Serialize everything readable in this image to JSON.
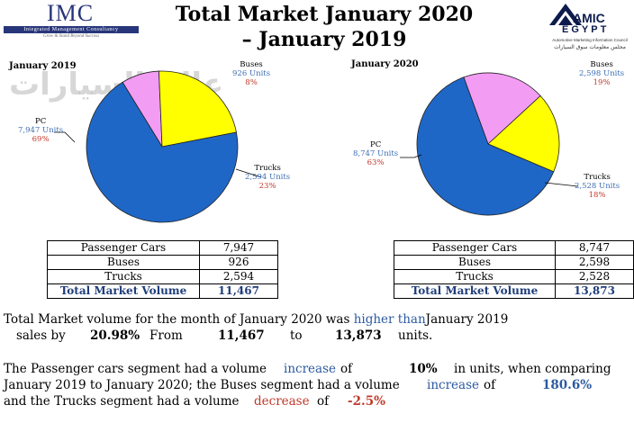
{
  "header": {
    "title_line1": "Total Market January 2020",
    "title_line2": "– January 2019",
    "imc_logo": {
      "letters": "IMC",
      "bar": "Integrated Management Consultancy",
      "tagline": "Grow & Stand Beyond Success"
    },
    "amic_logo": {
      "word1": "AMIC",
      "word2": "EGYPT",
      "sub_en": "Automotive Marketing Information Council",
      "sub_ar": "مجلس معلومات سوق السيارات"
    }
  },
  "watermark": "عالم السيارات",
  "colors": {
    "pc": "#1f67c7",
    "buses": "#f39cf3",
    "trucks": "#ffff00",
    "units": "#3f6fb5",
    "pct": "#c0392b",
    "total": "#1f3d7a"
  },
  "chart_data": [
    {
      "type": "pie",
      "title": "January 2019",
      "categories": [
        "PC",
        "Buses",
        "Trucks"
      ],
      "values": [
        7947,
        926,
        2594
      ],
      "percent_labels": [
        "69%",
        "8%",
        "23%"
      ],
      "unit_labels": [
        "7,947 Units",
        "926 Units",
        "2,594 Units"
      ]
    },
    {
      "type": "pie",
      "title": "January 2020",
      "categories": [
        "PC",
        "Buses",
        "Trucks"
      ],
      "values": [
        8747,
        2598,
        2528
      ],
      "percent_labels": [
        "63%",
        "19%",
        "18%"
      ],
      "unit_labels": [
        "8,747 Units",
        "2,598 Units",
        "2,528 Units"
      ]
    },
    {
      "type": "table",
      "title": "",
      "rows": [
        [
          "Passenger Cars",
          "7,947"
        ],
        [
          "Buses",
          "926"
        ],
        [
          "Trucks",
          "2,594"
        ],
        [
          "Total Market Volume",
          "11,467"
        ]
      ]
    },
    {
      "type": "table",
      "title": "",
      "rows": [
        [
          "Passenger Cars",
          "8,747"
        ],
        [
          "Buses",
          "2,598"
        ],
        [
          "Trucks",
          "2,528"
        ],
        [
          "Total Market Volume",
          "13,873"
        ]
      ]
    }
  ],
  "summary": {
    "line1_a": "Total Market volume for the month of January 2020 was",
    "line1_b": "higher than",
    "line1_c": "January 2019",
    "line2_a": "sales by",
    "line2_pct": "20.98%",
    "line2_b": "From",
    "line2_from": "11,467",
    "line2_c": "to",
    "line2_to": "13,873",
    "line2_d": "units."
  },
  "segments": {
    "l1_a": "The Passenger cars segment had a volume",
    "l1_b": "increase",
    "l1_c": "of",
    "l1_pct": "10%",
    "l1_d": "in units, when comparing",
    "l2_a": "January 2019 to January 2020; the Buses segment had a volume",
    "l2_b": "increase",
    "l2_c": "of",
    "l2_pct": "180.6%",
    "l3_a": "and the Trucks segment had a volume",
    "l3_b": "decrease",
    "l3_c": "of",
    "l3_pct": "-2.5%"
  }
}
